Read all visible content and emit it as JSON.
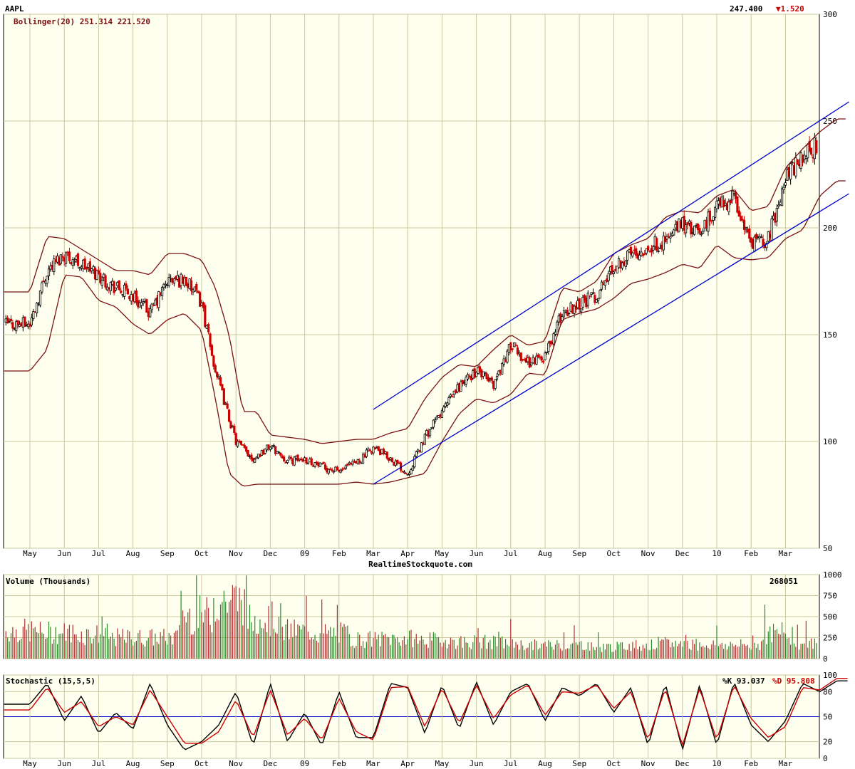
{
  "header": {
    "symbol": "AAPL",
    "last_price": "247.400",
    "change": "▼1.520",
    "indicator_label": "Bollinger(20) 251.314 221.520",
    "watermark": "RealtimeStockquote.com"
  },
  "volume_panel": {
    "title": "Volume (Thousands)",
    "last_value": "268051",
    "y_ticks": [
      "1000",
      "750",
      "500",
      "250",
      "0"
    ]
  },
  "stochastic_panel": {
    "title": "Stochastic (15,5,5)",
    "k_label": "%K 93.037",
    "d_label": "%D 95.808",
    "y_ticks": [
      "100",
      "80",
      "50",
      "20",
      "0"
    ]
  },
  "colors": {
    "background": "#fffff0",
    "grid": "#c8c89c",
    "up_candle": "#000000",
    "down_candle": "#cc0000",
    "bollinger": "#7a1010",
    "channel": "#0000cc",
    "volume_up": "#2a8a2a",
    "volume_down": "#b03030",
    "stoch_k": "#000000",
    "stoch_d": "#cc0000",
    "change_down": "#cc0000"
  },
  "chart_data": [
    {
      "type": "candlestick",
      "title": "AAPL",
      "y_ticks": [
        "300",
        "250",
        "200",
        "150",
        "100",
        "50"
      ],
      "ylim": [
        50,
        300
      ],
      "x_tick_labels": [
        "May",
        "Jun",
        "Jul",
        "Aug",
        "Sep",
        "Oct",
        "Nov",
        "Dec",
        "09",
        "Feb",
        "Mar",
        "Apr",
        "May",
        "Jun",
        "Jul",
        "Aug",
        "Sep",
        "Oct",
        "Nov",
        "Dec",
        "10",
        "Feb",
        "Mar"
      ],
      "close_path": {
        "months": [
          0,
          0.5,
          1,
          1.5,
          2,
          2.5,
          3,
          3.5,
          4,
          4.5,
          5,
          5.3,
          5.6,
          6,
          6.5,
          7,
          7.5,
          8,
          8.5,
          9,
          9.5,
          10,
          10.5,
          11,
          11.5,
          12,
          12.5,
          13,
          13.5,
          14,
          14.5,
          15,
          15.5,
          16,
          16.5,
          17,
          17.5,
          18,
          18.5,
          19,
          19.5,
          20,
          20.5,
          21,
          21.5,
          22,
          22.5,
          23,
          23.5
        ],
        "values": [
          155,
          180,
          188,
          183,
          178,
          172,
          168,
          160,
          175,
          176,
          165,
          140,
          122,
          100,
          92,
          98,
          91,
          92,
          88,
          86,
          90,
          97,
          92,
          85,
          102,
          114,
          126,
          133,
          127,
          145,
          137,
          140,
          160,
          165,
          168,
          182,
          188,
          191,
          194,
          202,
          197,
          210,
          214,
          192,
          195,
          224,
          233,
          240,
          250
        ]
      },
      "bollinger_upper_path": {
        "months": [
          0,
          0.5,
          1,
          1.5,
          2,
          2.5,
          3,
          3.5,
          4,
          4.5,
          5,
          5.4,
          5.8,
          6.2,
          6.6,
          7,
          7.5,
          8,
          8.5,
          9,
          9.5,
          10,
          10.5,
          11,
          11.5,
          12,
          12.5,
          13,
          13.5,
          14,
          14.5,
          15,
          15.5,
          16,
          16.5,
          17,
          17.5,
          18,
          18.5,
          19,
          19.5,
          20,
          20.5,
          21,
          21.5,
          22,
          22.5,
          23,
          23.5
        ],
        "values": [
          170,
          196,
          195,
          190,
          185,
          180,
          180,
          178,
          188,
          188,
          185,
          172,
          150,
          114,
          114,
          103,
          102,
          101,
          99,
          100,
          101,
          101,
          104,
          106,
          120,
          130,
          136,
          135,
          143,
          150,
          145,
          147,
          172,
          170,
          175,
          188,
          192,
          195,
          205,
          208,
          207,
          215,
          218,
          208,
          210,
          228,
          237,
          245,
          251
        ]
      },
      "bollinger_lower_path": {
        "months": [
          0,
          0.5,
          1,
          1.5,
          2,
          2.5,
          3,
          3.5,
          4,
          4.5,
          5,
          5.4,
          5.8,
          6.2,
          6.6,
          7,
          7.5,
          8,
          8.5,
          9,
          9.5,
          10,
          10.5,
          11,
          11.5,
          12,
          12.5,
          13,
          13.5,
          14,
          14.5,
          15,
          15.5,
          16,
          16.5,
          17,
          17.5,
          18,
          18.5,
          19,
          19.5,
          20,
          20.5,
          21,
          21.5,
          22,
          22.5,
          23,
          23.5
        ],
        "values": [
          133,
          143,
          178,
          177,
          166,
          163,
          155,
          150,
          157,
          160,
          152,
          120,
          85,
          79,
          80,
          80,
          80,
          80,
          80,
          80,
          81,
          80,
          81,
          83,
          85,
          100,
          113,
          120,
          118,
          122,
          132,
          131,
          157,
          160,
          162,
          167,
          174,
          176,
          179,
          183,
          181,
          192,
          186,
          185,
          186,
          195,
          199,
          215,
          222
        ]
      },
      "channel_lines": [
        {
          "from_month": 10,
          "from_value": 115,
          "to_month": 23.85,
          "to_value": 259
        },
        {
          "from_month": 10,
          "from_value": 80,
          "to_month": 23.85,
          "to_value": 216
        }
      ]
    },
    {
      "type": "bar",
      "title": "Volume (Thousands)",
      "ylim": [
        0,
        1000
      ],
      "y_ticks": [
        "1000",
        "750",
        "500",
        "250",
        "0"
      ],
      "monthly_avg_volume": [
        330,
        310,
        290,
        250,
        250,
        520,
        700,
        470,
        330,
        300,
        230,
        240,
        220,
        200,
        190,
        160,
        170,
        140,
        160,
        180,
        170,
        160,
        300,
        180,
        160
      ],
      "last_value": 268051
    },
    {
      "type": "line",
      "title": "Stochastic (15,5,5)",
      "ylim": [
        0,
        100
      ],
      "y_ticks": [
        "100",
        "80",
        "50",
        "20",
        "0"
      ],
      "reference_lines": [
        50
      ],
      "series": [
        {
          "name": "%K",
          "last": 93.037,
          "months": [
            0,
            0.5,
            1,
            1.5,
            2,
            2.5,
            3,
            3.5,
            4,
            4.5,
            5,
            5.5,
            6,
            6.5,
            7,
            7.5,
            8,
            8.5,
            9,
            9.5,
            10,
            10.5,
            11,
            11.5,
            12,
            12.5,
            13,
            13.5,
            14,
            14.5,
            15,
            15.5,
            16,
            16.5,
            17,
            17.5,
            18,
            18.5,
            19,
            19.5,
            20,
            20.5,
            21,
            21.5,
            22,
            22.5,
            23,
            23.5
          ],
          "values": [
            65,
            90,
            45,
            75,
            30,
            55,
            35,
            90,
            40,
            10,
            20,
            40,
            80,
            15,
            90,
            20,
            55,
            15,
            80,
            25,
            25,
            90,
            85,
            30,
            88,
            35,
            92,
            40,
            80,
            90,
            45,
            85,
            75,
            90,
            55,
            85,
            15,
            90,
            10,
            88,
            15,
            92,
            40,
            20,
            45,
            90,
            80,
            93
          ]
        },
        {
          "name": "%D",
          "last": 95.808,
          "months": [
            0,
            0.5,
            1,
            1.5,
            2,
            2.5,
            3,
            3.5,
            4,
            4.5,
            5,
            5.5,
            6,
            6.5,
            7,
            7.5,
            8,
            8.5,
            9,
            9.5,
            10,
            10.5,
            11,
            11.5,
            12,
            12.5,
            13,
            13.5,
            14,
            14.5,
            15,
            15.5,
            16,
            16.5,
            17,
            17.5,
            18,
            18.5,
            19,
            19.5,
            20,
            20.5,
            21,
            21.5,
            22,
            22.5,
            23,
            23.5
          ],
          "values": [
            58,
            85,
            55,
            68,
            38,
            50,
            40,
            82,
            50,
            18,
            18,
            32,
            70,
            25,
            82,
            28,
            48,
            22,
            72,
            32,
            22,
            85,
            86,
            38,
            84,
            42,
            88,
            48,
            76,
            88,
            52,
            80,
            78,
            88,
            60,
            80,
            22,
            84,
            15,
            84,
            22,
            88,
            48,
            25,
            38,
            85,
            82,
            96
          ]
        }
      ]
    }
  ]
}
